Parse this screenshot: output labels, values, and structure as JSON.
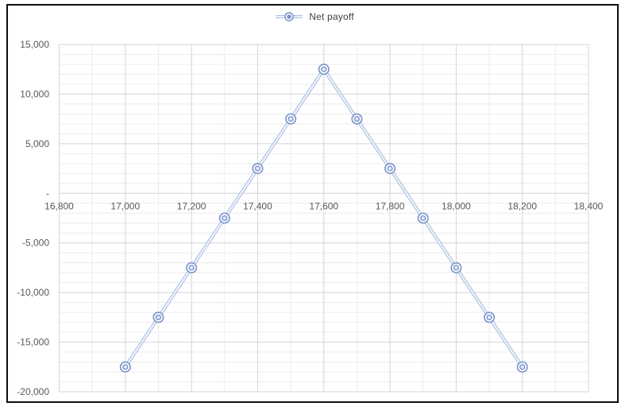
{
  "legend": {
    "label": "Net payoff"
  },
  "chart_data": {
    "type": "line",
    "title": "",
    "legend_entries": [
      "Net payoff"
    ],
    "legend_position": "top",
    "grid": true,
    "marker_style": "circle-in-circle",
    "x": [
      17000,
      17100,
      17200,
      17300,
      17400,
      17500,
      17600,
      17700,
      17800,
      17900,
      18000,
      18100,
      18200
    ],
    "series": [
      {
        "name": "Net payoff",
        "values": [
          -17500,
          -12500,
          -7500,
          -2500,
          2500,
          7500,
          12500,
          7500,
          2500,
          -2500,
          -7500,
          -12500,
          -17500
        ]
      }
    ],
    "xlabel": "",
    "ylabel": "",
    "xlim": [
      16800,
      18400
    ],
    "ylim": [
      -20000,
      15000
    ],
    "x_major_ticks": [
      16800,
      17000,
      17200,
      17400,
      17600,
      17800,
      18000,
      18200,
      18400
    ],
    "x_tick_labels": [
      "16,800",
      "17,000",
      "17,200",
      "17,400",
      "17,600",
      "17,800",
      "18,000",
      "18,200",
      "18,400"
    ],
    "x_minor_step": 100,
    "y_major_ticks": [
      15000,
      10000,
      5000,
      0,
      -5000,
      -10000,
      -15000,
      -20000
    ],
    "y_tick_labels": [
      "15,000",
      "10,000",
      "5,000",
      "-",
      "-5,000",
      "-10,000",
      "-15,000",
      "-20,000"
    ],
    "y_minor_step": 1000,
    "colors": {
      "series_line": "#adc2e6",
      "series_line_core": "#ffffff",
      "marker_ring": "#7e97cd",
      "marker_fill": "#ffffff",
      "marker_inner_fill": "#e4ebf7",
      "gridline_minor": "#ececec",
      "gridline_major": "#d4d4d4",
      "axis_label": "#595959",
      "legend_text": "#3f3f3f",
      "frame_border": "#0e0e0e",
      "background": "#ffffff"
    }
  }
}
